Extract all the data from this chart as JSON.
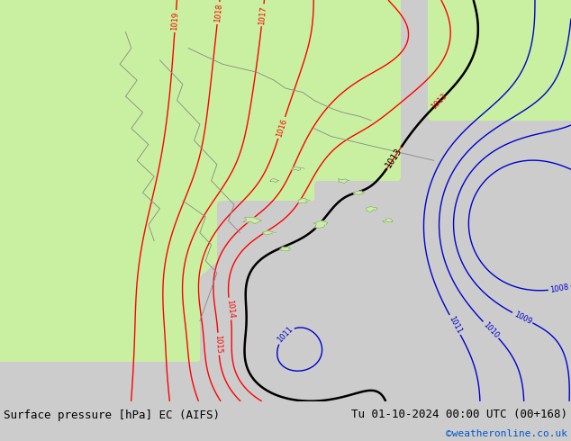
{
  "title_left": "Surface pressure [hPa] EC (AIFS)",
  "title_right": "Tu 01-10-2024 00:00 UTC (00+168)",
  "credit": "©weatheronline.co.uk",
  "bg_color": "#cccccc",
  "map_bg_color": "#cccccc",
  "land_green_color": "#c8f0a0",
  "bottom_bar_color": "#cccccc",
  "red_contour_color": "#ff0000",
  "blue_contour_color": "#0000cc",
  "black_contour_color": "#000000",
  "title_fontsize": 9,
  "credit_fontsize": 8,
  "credit_color": "#0055cc",
  "red_levels": [
    1013,
    1014,
    1015,
    1016,
    1017,
    1018,
    1019
  ],
  "blue_levels": [
    1008,
    1009,
    1010,
    1011
  ],
  "black_levels": [
    1013
  ]
}
